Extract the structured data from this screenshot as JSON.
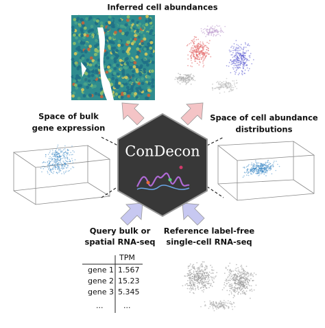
{
  "title": "Inferred cell abundances",
  "left_label": [
    "Space of bulk",
    "gene expression"
  ],
  "right_label": [
    "Space of cell abundance",
    "distributions"
  ],
  "center_label": "ConDecon",
  "bottom_left_label": [
    "Query bulk or",
    "spatial RNA-seq"
  ],
  "bottom_right_label": [
    "Reference label-free",
    "single-cell RNA-seq"
  ],
  "table": {
    "header": [
      "",
      "TPM"
    ],
    "rows": [
      [
        "gene 1",
        "1.567"
      ],
      [
        "gene 2",
        "15.23"
      ],
      [
        "gene 3",
        "5.345"
      ],
      [
        "...",
        "..."
      ]
    ]
  }
}
